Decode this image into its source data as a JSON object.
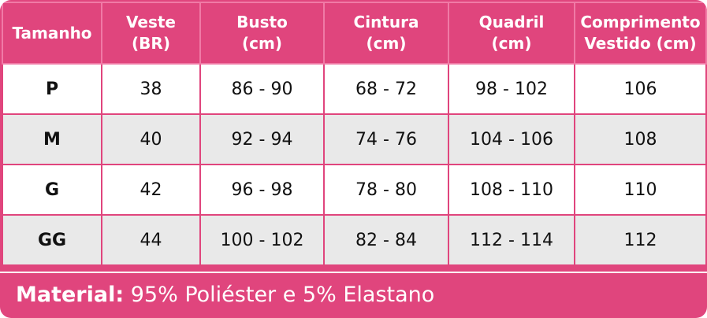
{
  "colors": {
    "accent": "#e0457d",
    "row_alt": "#e9e9e9"
  },
  "table": {
    "headers": [
      [
        "Tamanho"
      ],
      [
        "Veste",
        "(BR)"
      ],
      [
        "Busto",
        "(cm)"
      ],
      [
        "Cintura",
        "(cm)"
      ],
      [
        "Quadril",
        "(cm)"
      ],
      [
        "Comprimento",
        "Vestido (cm)"
      ]
    ],
    "rows": [
      [
        "P",
        "38",
        "86 - 90",
        "68 - 72",
        "98 - 102",
        "106"
      ],
      [
        "M",
        "40",
        "92 - 94",
        "74 - 76",
        "104 - 106",
        "108"
      ],
      [
        "G",
        "42",
        "96 - 98",
        "78 - 80",
        "108 - 110",
        "110"
      ],
      [
        "GG",
        "44",
        "100 - 102",
        "82 - 84",
        "112 - 114",
        "112"
      ]
    ]
  },
  "footer": {
    "label": "Material:",
    "value": " 95% Poliéster e 5% Elastano"
  }
}
